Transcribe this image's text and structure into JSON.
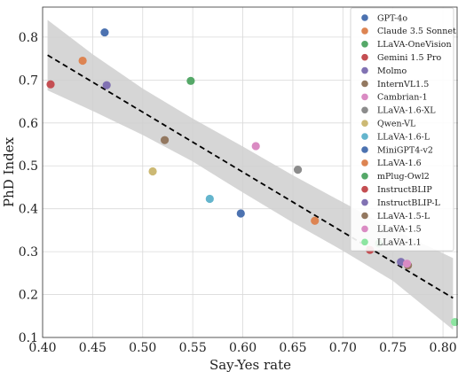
{
  "chart_data": {
    "type": "scatter",
    "title": "",
    "xlabel": "Say-Yes rate",
    "ylabel": "PhD Index",
    "xlim": [
      0.4,
      0.815
    ],
    "ylim": [
      0.1,
      0.87
    ],
    "xticks": [
      "0.40",
      "0.45",
      "0.50",
      "0.55",
      "0.60",
      "0.65",
      "0.70",
      "0.75",
      "0.80"
    ],
    "yticks": [
      "0.1",
      "0.2",
      "0.3",
      "0.4",
      "0.5",
      "0.6",
      "0.7",
      "0.8"
    ],
    "grid": true,
    "legend_position": "top-right",
    "series": [
      {
        "name": "GPT-4o",
        "color": "#4c72b0",
        "points": [
          [
            0.462,
            0.811
          ]
        ]
      },
      {
        "name": "Claude 3.5 Sonnet",
        "color": "#dd8452",
        "points": [
          [
            0.44,
            0.745
          ]
        ]
      },
      {
        "name": "LLaVA-OneVision",
        "color": "#55a868",
        "points": [
          [
            0.548,
            0.698
          ]
        ]
      },
      {
        "name": "Gemini 1.5 Pro",
        "color": "#c44e52",
        "points": [
          [
            0.408,
            0.69
          ]
        ]
      },
      {
        "name": "Molmo",
        "color": "#8172b3",
        "points": [
          [
            0.464,
            0.688
          ]
        ]
      },
      {
        "name": "InternVL1.5",
        "color": "#937860",
        "points": [
          [
            0.522,
            0.56
          ]
        ]
      },
      {
        "name": "Cambrian-1",
        "color": "#da8bc3",
        "points": [
          [
            0.613,
            0.546
          ]
        ]
      },
      {
        "name": "LLaVA-1.6-XL",
        "color": "#8c8c8c",
        "points": [
          [
            0.655,
            0.491
          ]
        ]
      },
      {
        "name": "Qwen-VL",
        "color": "#ccb974",
        "points": [
          [
            0.51,
            0.487
          ]
        ]
      },
      {
        "name": "LLaVA-1.6-L",
        "color": "#64b5cd",
        "points": [
          [
            0.567,
            0.423
          ]
        ]
      },
      {
        "name": "MiniGPT4-v2",
        "color": "#4c72b0",
        "points": [
          [
            0.598,
            0.389
          ]
        ]
      },
      {
        "name": "LLaVA-1.6",
        "color": "#dd8452",
        "points": [
          [
            0.672,
            0.372
          ]
        ]
      },
      {
        "name": "mPlug-Owl2",
        "color": "#55a868",
        "points": [
          [
            0.736,
            0.319
          ]
        ]
      },
      {
        "name": "InstructBLIP",
        "color": "#c44e52",
        "points": [
          [
            0.727,
            0.304
          ]
        ]
      },
      {
        "name": "InstructBLIP-L",
        "color": "#8172b3",
        "points": [
          [
            0.758,
            0.276
          ]
        ]
      },
      {
        "name": "LLaVA-1.5-L",
        "color": "#937860",
        "points": [
          [
            0.765,
            0.268
          ]
        ]
      },
      {
        "name": "LLaVA-1.5",
        "color": "#da8bc3",
        "points": [
          [
            0.764,
            0.272
          ]
        ]
      },
      {
        "name": "LLaVA-1.1",
        "color": "#8de5a1",
        "points": [
          [
            0.812,
            0.136
          ]
        ]
      }
    ],
    "trend_line": {
      "x": [
        0.405,
        0.81
      ],
      "y": [
        0.758,
        0.192
      ],
      "style": "dashed",
      "color": "#000000"
    },
    "confidence_band": {
      "x": [
        0.405,
        0.45,
        0.5,
        0.55,
        0.6,
        0.65,
        0.7,
        0.75,
        0.81
      ],
      "upper": [
        0.84,
        0.76,
        0.68,
        0.61,
        0.545,
        0.478,
        0.415,
        0.352,
        0.285
      ],
      "lower": [
        0.676,
        0.628,
        0.572,
        0.51,
        0.438,
        0.368,
        0.302,
        0.232,
        0.118
      ],
      "color": "#cfcfcf"
    }
  }
}
